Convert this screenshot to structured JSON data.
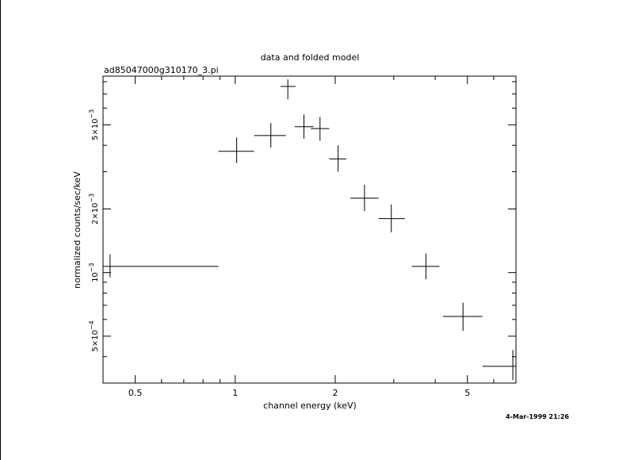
{
  "chart_data": {
    "type": "scatter",
    "title": "data and folded model",
    "subtitle": "ad85047000g310170_3.pi",
    "xlabel": "channel energy (keV)",
    "ylabel": "normalized counts/sec/keV",
    "timestamp": "4-Mar-1999 21:26",
    "x_scale": "log",
    "y_scale": "log",
    "xlim": [
      0.4,
      7.0
    ],
    "ylim": [
      0.0003,
      0.0085
    ],
    "x_ticks": [
      {
        "value": 0.5,
        "label": "0.5"
      },
      {
        "value": 1,
        "label": "1"
      },
      {
        "value": 2,
        "label": "2"
      },
      {
        "value": 5,
        "label": "5"
      }
    ],
    "y_ticks": [
      {
        "value": 0.0005,
        "mant": "5×10",
        "exp": "−4"
      },
      {
        "value": 0.001,
        "mant": "10",
        "exp": "−3"
      },
      {
        "value": 0.002,
        "mant": "2×10",
        "exp": "−3"
      },
      {
        "value": 0.005,
        "mant": "5×10",
        "exp": "−3"
      }
    ],
    "points": [
      {
        "x": 0.42,
        "xlo": 0.4,
        "xhi": 0.89,
        "y": 0.00107,
        "ylo": 0.00095,
        "yhi": 0.00122
      },
      {
        "x": 1.01,
        "xlo": 0.89,
        "xhi": 1.14,
        "y": 0.00375,
        "ylo": 0.0033,
        "yhi": 0.00435
      },
      {
        "x": 1.28,
        "xlo": 1.14,
        "xhi": 1.42,
        "y": 0.00445,
        "ylo": 0.0039,
        "yhi": 0.0051
      },
      {
        "x": 1.44,
        "xlo": 1.37,
        "xhi": 1.52,
        "y": 0.0076,
        "ylo": 0.0066,
        "yhi": 0.0082
      },
      {
        "x": 1.61,
        "xlo": 1.51,
        "xhi": 1.72,
        "y": 0.0049,
        "ylo": 0.0043,
        "yhi": 0.0056
      },
      {
        "x": 1.8,
        "xlo": 1.69,
        "xhi": 1.92,
        "y": 0.0048,
        "ylo": 0.0042,
        "yhi": 0.00545
      },
      {
        "x": 2.04,
        "xlo": 1.92,
        "xhi": 2.16,
        "y": 0.00345,
        "ylo": 0.003,
        "yhi": 0.004
      },
      {
        "x": 2.45,
        "xlo": 2.22,
        "xhi": 2.7,
        "y": 0.00225,
        "ylo": 0.00195,
        "yhi": 0.0026
      },
      {
        "x": 2.95,
        "xlo": 2.7,
        "xhi": 3.24,
        "y": 0.0018,
        "ylo": 0.00155,
        "yhi": 0.0021
      },
      {
        "x": 3.75,
        "xlo": 3.4,
        "xhi": 4.12,
        "y": 0.00107,
        "ylo": 0.00093,
        "yhi": 0.00123
      },
      {
        "x": 4.85,
        "xlo": 4.22,
        "xhi": 5.55,
        "y": 0.00062,
        "ylo": 0.00053,
        "yhi": 0.00072
      },
      {
        "x": 6.85,
        "xlo": 5.55,
        "xhi": 7.0,
        "y": 0.00036,
        "ylo": 0.00031,
        "yhi": 0.00043
      }
    ]
  }
}
